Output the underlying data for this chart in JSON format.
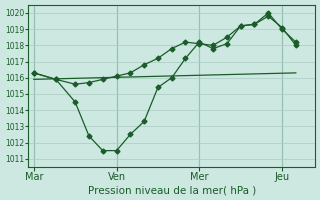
{
  "xlabel": "Pression niveau de la mer( hPa )",
  "yticks": [
    1011,
    1012,
    1013,
    1014,
    1015,
    1016,
    1017,
    1018,
    1019,
    1020
  ],
  "ylim": [
    1010.5,
    1020.5
  ],
  "xtick_labels": [
    "Mar",
    "Ven",
    "Mer",
    "Jeu"
  ],
  "xtick_positions": [
    0,
    3,
    6,
    9
  ],
  "xlim": [
    -0.2,
    10.2
  ],
  "background_color": "#cce8e0",
  "grid_color": "#aaccC2",
  "line_color": "#1a5c2a",
  "series_dip": {
    "x": [
      0,
      0.8,
      1.5,
      2.0,
      2.5,
      3.0,
      3.5,
      4.0,
      4.5,
      5.0,
      5.5,
      6.0,
      6.5,
      7.0,
      7.5,
      8.0,
      8.5,
      9.0,
      9.5
    ],
    "y": [
      1016.3,
      1015.9,
      1014.5,
      1012.4,
      1011.5,
      1011.5,
      1012.5,
      1013.3,
      1015.4,
      1016.0,
      1017.2,
      1018.2,
      1017.8,
      1018.1,
      1019.2,
      1019.3,
      1020.0,
      1019.0,
      1018.2
    ]
  },
  "series_high": {
    "x": [
      0,
      0.8,
      1.5,
      2.0,
      2.5,
      3.0,
      3.5,
      4.0,
      4.5,
      5.0,
      5.5,
      6.0,
      6.5,
      7.0,
      7.5,
      8.0,
      8.5,
      9.0,
      9.5
    ],
    "y": [
      1016.3,
      1015.9,
      1015.6,
      1015.7,
      1015.9,
      1016.1,
      1016.3,
      1016.8,
      1017.2,
      1017.8,
      1018.2,
      1018.1,
      1018.0,
      1018.5,
      1019.2,
      1019.3,
      1019.8,
      1019.1,
      1018.0
    ]
  },
  "series_straight": {
    "x": [
      0,
      9.5
    ],
    "y": [
      1015.9,
      1016.3
    ]
  },
  "vline_positions": [
    0,
    3,
    6,
    9
  ],
  "marker": "D",
  "markersize": 2.5
}
